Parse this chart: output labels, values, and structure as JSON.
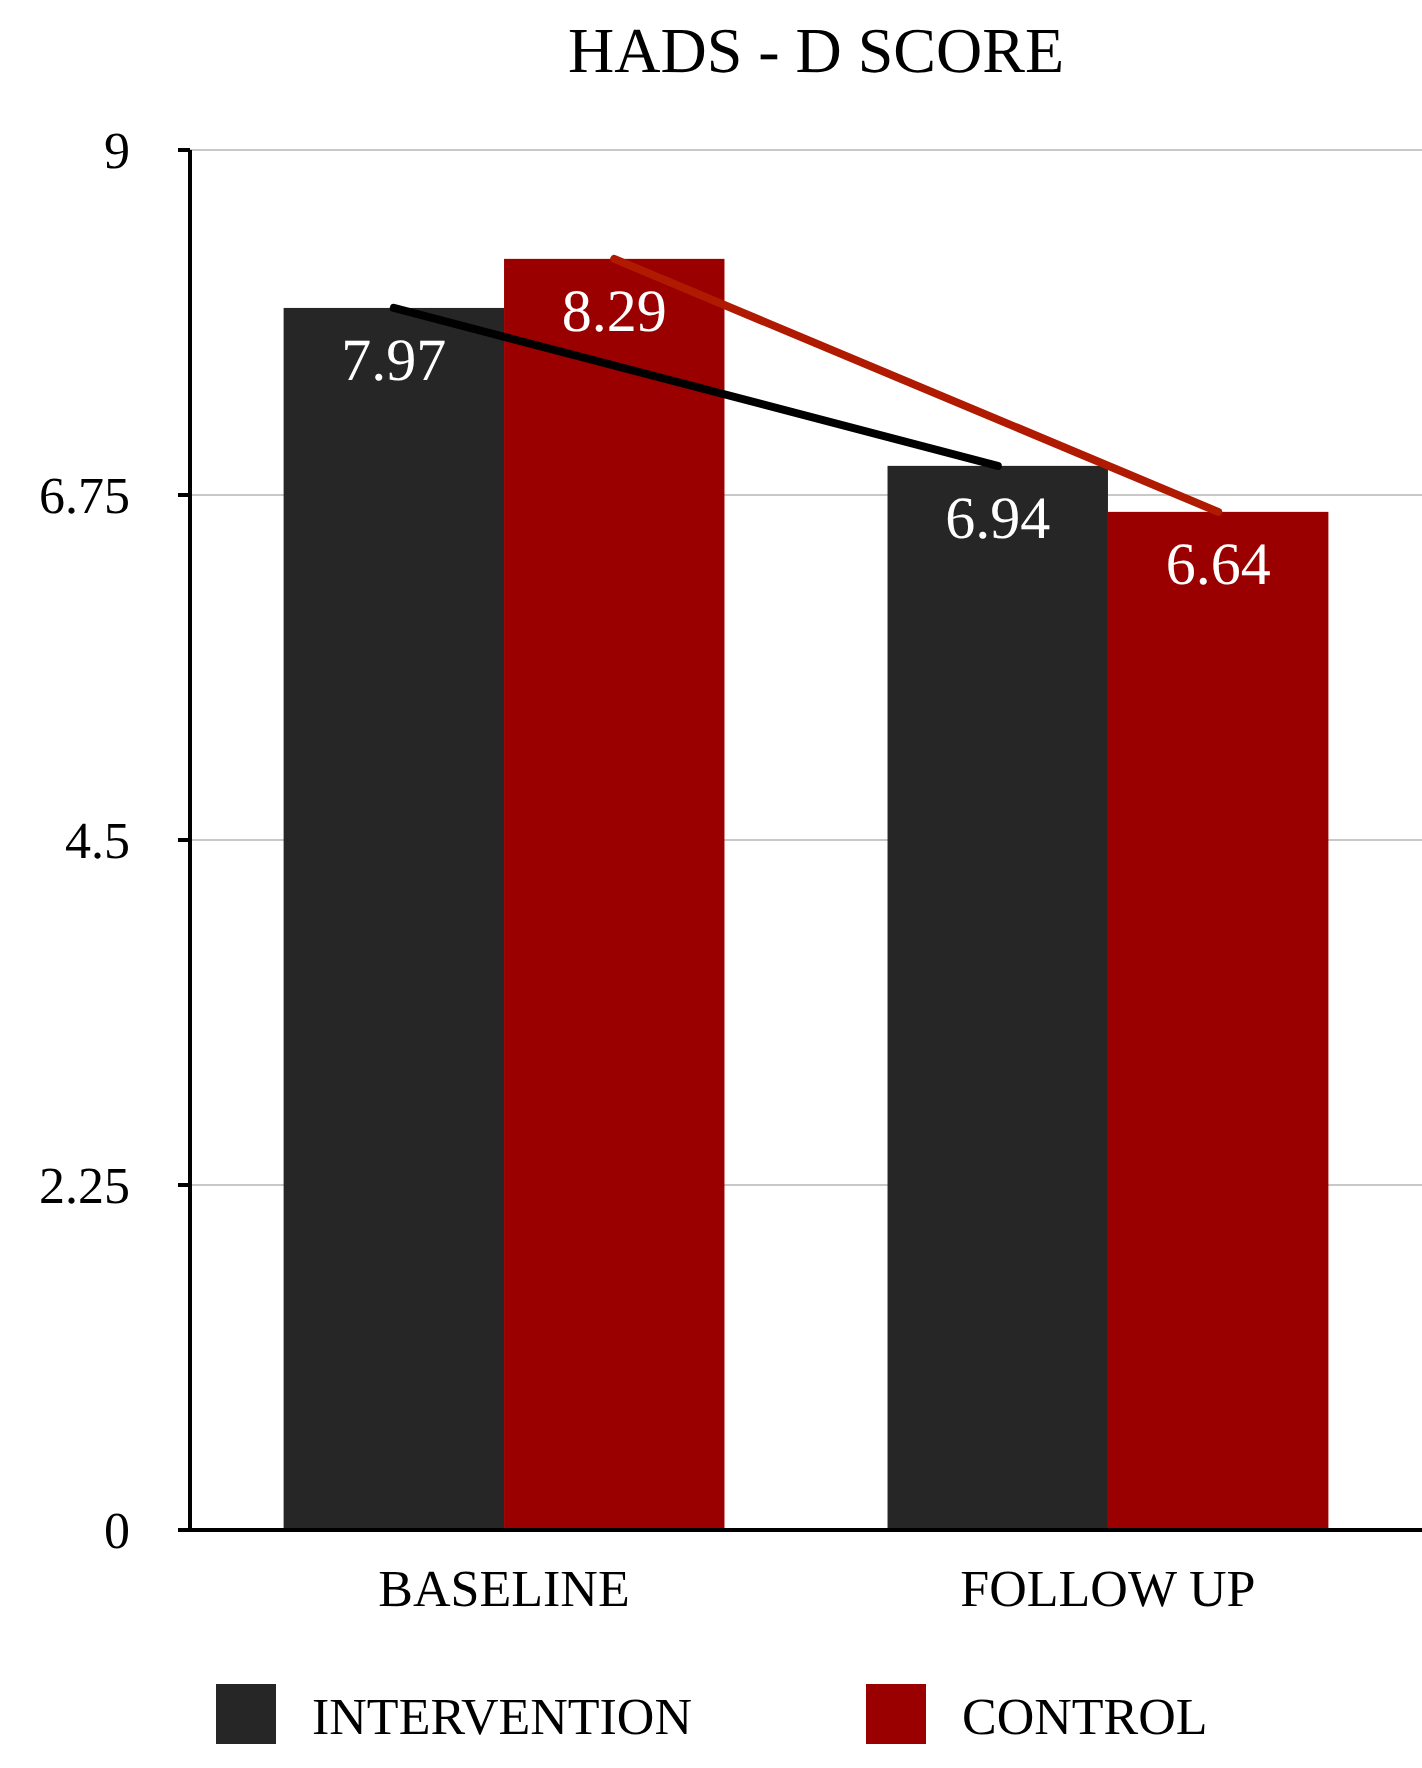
{
  "chart_data": {
    "type": "bar",
    "title": "HADS - D SCORE",
    "categories": [
      "BASELINE",
      "FOLLOW UP"
    ],
    "series": [
      {
        "name": "INTERVENTION",
        "color": "#262626",
        "values": [
          7.97,
          6.94
        ],
        "value_labels": [
          "7.97",
          "6.94"
        ]
      },
      {
        "name": "CONTROL",
        "color": "#9a0000",
        "values": [
          8.29,
          6.64
        ],
        "value_labels": [
          "8.29",
          "6.64"
        ]
      },
      {
        "type": "line",
        "color": "#000000",
        "values": [
          7.97,
          6.94
        ]
      },
      {
        "type": "line",
        "color": "#b01a00",
        "values": [
          8.29,
          6.64
        ]
      }
    ],
    "ylim": [
      0,
      9
    ],
    "yticks": [
      0,
      2.25,
      4.5,
      6.75,
      9
    ],
    "grid": "y",
    "legend": "bottom"
  }
}
